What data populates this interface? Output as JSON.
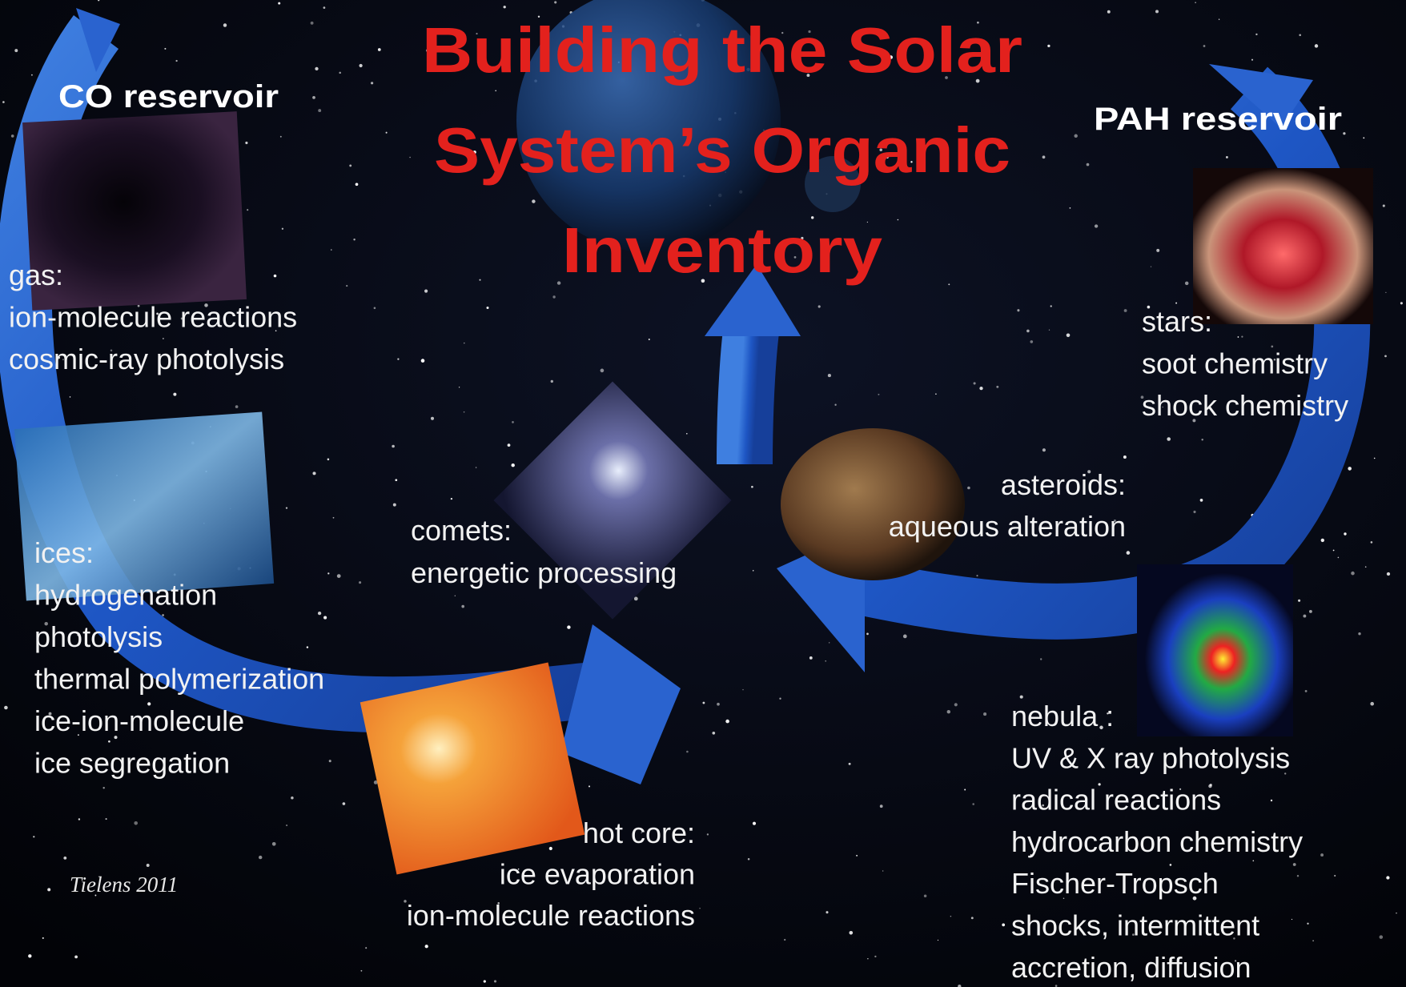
{
  "title": {
    "lines": [
      "Building the Solar",
      "System’s Organic",
      "Inventory"
    ]
  },
  "reservoirs": [
    "CO reservoir",
    "PAH reservoir"
  ],
  "nodes": [
    {
      "label": "gas:",
      "processes": [
        "ion-molecule reactions",
        "cosmic-ray photolysis"
      ]
    },
    {
      "label": "stars:",
      "processes": [
        "soot chemistry",
        "shock chemistry"
      ]
    },
    {
      "label": "asteroids:",
      "processes": [
        "aqueous alteration"
      ]
    },
    {
      "label": "comets:",
      "processes": [
        "energetic processing"
      ]
    },
    {
      "label": "ices:",
      "processes": [
        "hydrogenation",
        "photolysis",
        "thermal polymerization",
        "ice-ion-molecule",
        "ice segregation"
      ]
    },
    {
      "label": "hot core:",
      "processes": [
        "ice evaporation",
        "ion-molecule reactions"
      ]
    },
    {
      "label": "nebula :",
      "processes": [
        "UV & X ray photolysis",
        "radical reactions",
        "hydrocarbon chemistry",
        "Fischer-Tropsch",
        "shocks, intermittent",
        "accretion, diffusion"
      ]
    }
  ],
  "credit": "Tielens 2011"
}
